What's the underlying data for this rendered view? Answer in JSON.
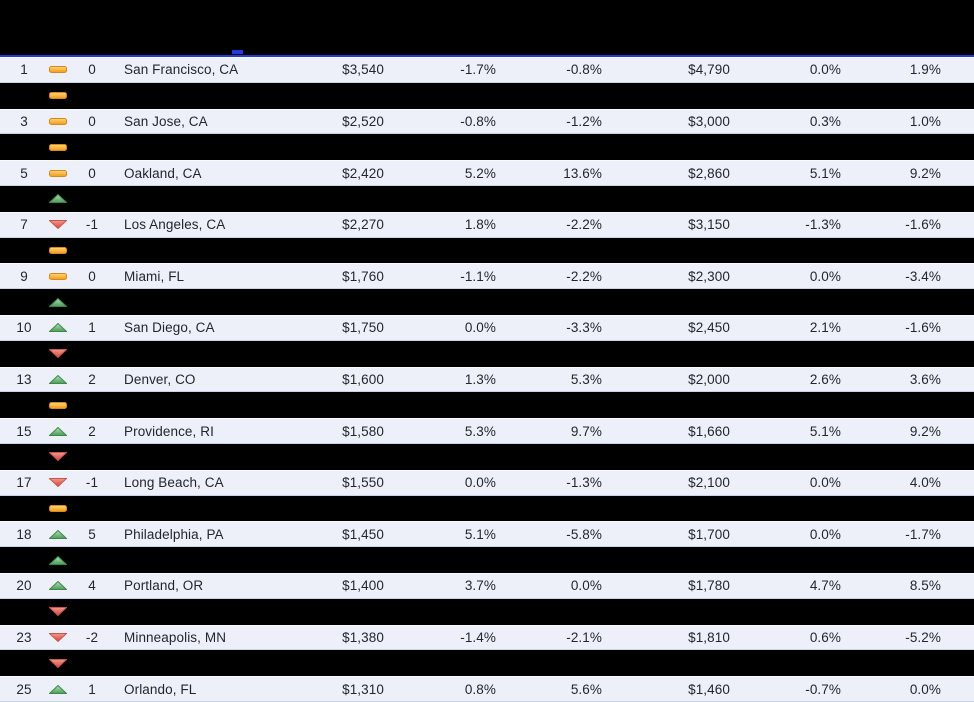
{
  "page": {
    "accent_blue": "#2239dd",
    "row_background": "#edf0f9",
    "trend_colors": {
      "flat": "#f5a623",
      "up": "#4e9a59",
      "down": "#d9544a"
    }
  },
  "table": {
    "rows": [
      {
        "visible": true,
        "rank": "1",
        "trend": "flat",
        "change": "0",
        "city": "San Francisco, CA",
        "p1": "$3,540",
        "p1_mom": "-1.7%",
        "p1_yoy": "-0.8%",
        "p2": "$4,790",
        "p2_mom": "0.0%",
        "p2_yoy": "1.9%"
      },
      {
        "visible": false,
        "trend": "flat"
      },
      {
        "visible": true,
        "rank": "3",
        "trend": "flat",
        "change": "0",
        "city": "San Jose, CA",
        "p1": "$2,520",
        "p1_mom": "-0.8%",
        "p1_yoy": "-1.2%",
        "p2": "$3,000",
        "p2_mom": "0.3%",
        "p2_yoy": "1.0%"
      },
      {
        "visible": false,
        "trend": "flat"
      },
      {
        "visible": true,
        "rank": "5",
        "trend": "flat",
        "change": "0",
        "city": "Oakland, CA",
        "p1": "$2,420",
        "p1_mom": "5.2%",
        "p1_yoy": "13.6%",
        "p2": "$2,860",
        "p2_mom": "5.1%",
        "p2_yoy": "9.2%"
      },
      {
        "visible": false,
        "trend": "up"
      },
      {
        "visible": true,
        "rank": "7",
        "trend": "down",
        "change": "-1",
        "city": "Los Angeles, CA",
        "p1": "$2,270",
        "p1_mom": "1.8%",
        "p1_yoy": "-2.2%",
        "p2": "$3,150",
        "p2_mom": "-1.3%",
        "p2_yoy": "-1.6%"
      },
      {
        "visible": false,
        "trend": "flat"
      },
      {
        "visible": true,
        "rank": "9",
        "trend": "flat",
        "change": "0",
        "city": "Miami, FL",
        "p1": "$1,760",
        "p1_mom": "-1.1%",
        "p1_yoy": "-2.2%",
        "p2": "$2,300",
        "p2_mom": "0.0%",
        "p2_yoy": "-3.4%"
      },
      {
        "visible": false,
        "trend": "up"
      },
      {
        "visible": true,
        "rank": "10",
        "trend": "up",
        "change": "1",
        "city": "San Diego, CA",
        "p1": "$1,750",
        "p1_mom": "0.0%",
        "p1_yoy": "-3.3%",
        "p2": "$2,450",
        "p2_mom": "2.1%",
        "p2_yoy": "-1.6%"
      },
      {
        "visible": false,
        "trend": "down"
      },
      {
        "visible": true,
        "rank": "13",
        "trend": "up",
        "change": "2",
        "city": "Denver, CO",
        "p1": "$1,600",
        "p1_mom": "1.3%",
        "p1_yoy": "5.3%",
        "p2": "$2,000",
        "p2_mom": "2.6%",
        "p2_yoy": "3.6%"
      },
      {
        "visible": false,
        "trend": "flat"
      },
      {
        "visible": true,
        "rank": "15",
        "trend": "up",
        "change": "2",
        "city": "Providence, RI",
        "p1": "$1,580",
        "p1_mom": "5.3%",
        "p1_yoy": "9.7%",
        "p2": "$1,660",
        "p2_mom": "5.1%",
        "p2_yoy": "9.2%"
      },
      {
        "visible": false,
        "trend": "down"
      },
      {
        "visible": true,
        "rank": "17",
        "trend": "down",
        "change": "-1",
        "city": "Long Beach, CA",
        "p1": "$1,550",
        "p1_mom": "0.0%",
        "p1_yoy": "-1.3%",
        "p2": "$2,100",
        "p2_mom": "0.0%",
        "p2_yoy": "4.0%"
      },
      {
        "visible": false,
        "trend": "flat"
      },
      {
        "visible": true,
        "rank": "18",
        "trend": "up",
        "change": "5",
        "city": "Philadelphia, PA",
        "p1": "$1,450",
        "p1_mom": "5.1%",
        "p1_yoy": "-5.8%",
        "p2": "$1,700",
        "p2_mom": "0.0%",
        "p2_yoy": "-1.7%"
      },
      {
        "visible": false,
        "trend": "up"
      },
      {
        "visible": true,
        "rank": "20",
        "trend": "up",
        "change": "4",
        "city": "Portland, OR",
        "p1": "$1,400",
        "p1_mom": "3.7%",
        "p1_yoy": "0.0%",
        "p2": "$1,780",
        "p2_mom": "4.7%",
        "p2_yoy": "8.5%"
      },
      {
        "visible": false,
        "trend": "down"
      },
      {
        "visible": true,
        "rank": "23",
        "trend": "down",
        "change": "-2",
        "city": "Minneapolis, MN",
        "p1": "$1,380",
        "p1_mom": "-1.4%",
        "p1_yoy": "-2.1%",
        "p2": "$1,810",
        "p2_mom": "0.6%",
        "p2_yoy": "-5.2%"
      },
      {
        "visible": false,
        "trend": "down"
      },
      {
        "visible": true,
        "rank": "25",
        "trend": "up",
        "change": "1",
        "city": "Orlando, FL",
        "p1": "$1,310",
        "p1_mom": "0.8%",
        "p1_yoy": "5.6%",
        "p2": "$1,460",
        "p2_mom": "-0.7%",
        "p2_yoy": "0.0%"
      }
    ]
  }
}
